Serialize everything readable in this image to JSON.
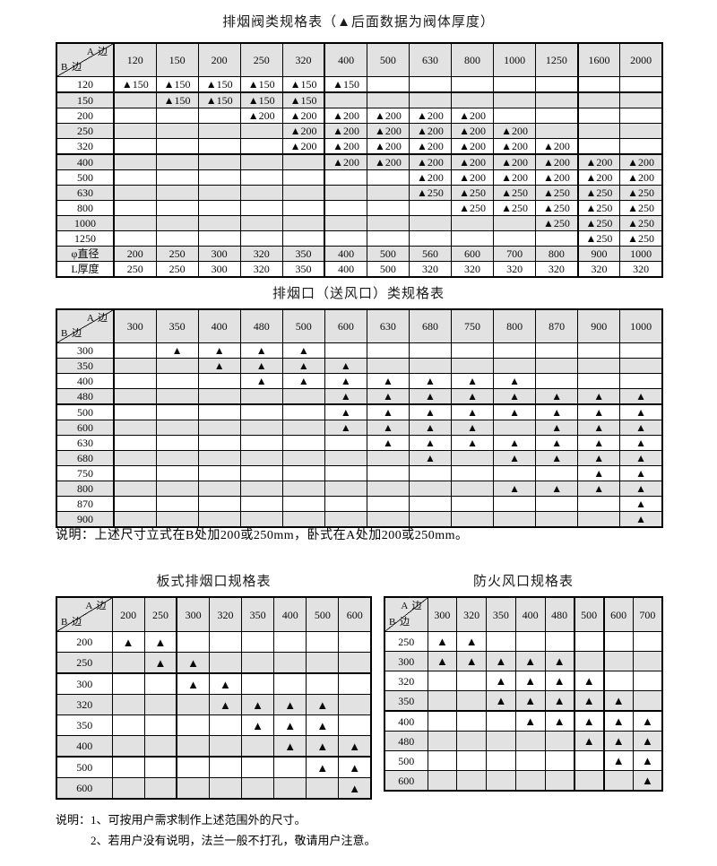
{
  "colors": {
    "header_fill": "#e2e2e2",
    "row_alt_fill": "#e2e2e2",
    "border": "#000000",
    "background": "#ffffff"
  },
  "tables": [
    {
      "title": "排烟阀类规格表（▲后面数据为阀体厚度）",
      "corner_top": "A 边",
      "corner_bottom": "B 边",
      "columns": [
        "120",
        "150",
        "200",
        "250",
        "320",
        "400",
        "500",
        "630",
        "800",
        "1000",
        "1250",
        "1600",
        "2000"
      ],
      "rows": [
        {
          "label": "120",
          "cells": [
            "▲150",
            "▲150",
            "▲150",
            "▲150",
            "▲150",
            "▲150",
            "",
            "",
            "",
            "",
            "",
            "",
            ""
          ]
        },
        {
          "label": "150",
          "cells": [
            "",
            "▲150",
            "▲150",
            "▲150",
            "▲150",
            "",
            "",
            "",
            "",
            "",
            "",
            "",
            ""
          ]
        },
        {
          "label": "200",
          "cells": [
            "",
            "",
            "",
            "▲200",
            "▲200",
            "▲200",
            "▲200",
            "▲200",
            "▲200",
            "",
            "",
            "",
            ""
          ]
        },
        {
          "label": "250",
          "cells": [
            "",
            "",
            "",
            "",
            "▲200",
            "▲200",
            "▲200",
            "▲200",
            "▲200",
            "▲200",
            "",
            "",
            ""
          ]
        },
        {
          "label": "320",
          "cells": [
            "",
            "",
            "",
            "",
            "▲200",
            "▲200",
            "▲200",
            "▲200",
            "▲200",
            "▲200",
            "▲200",
            "",
            ""
          ]
        },
        {
          "label": "400",
          "cells": [
            "",
            "",
            "",
            "",
            "",
            "▲200",
            "▲200",
            "▲200",
            "▲200",
            "▲200",
            "▲200",
            "▲200",
            "▲200"
          ]
        },
        {
          "label": "500",
          "cells": [
            "",
            "",
            "",
            "",
            "",
            "",
            "",
            "▲200",
            "▲200",
            "▲200",
            "▲200",
            "▲200",
            "▲200"
          ]
        },
        {
          "label": "630",
          "cells": [
            "",
            "",
            "",
            "",
            "",
            "",
            "",
            "▲250",
            "▲250",
            "▲250",
            "▲250",
            "▲250",
            "▲250"
          ]
        },
        {
          "label": "800",
          "cells": [
            "",
            "",
            "",
            "",
            "",
            "",
            "",
            "",
            "▲250",
            "▲250",
            "▲250",
            "▲250",
            "▲250"
          ]
        },
        {
          "label": "1000",
          "cells": [
            "",
            "",
            "",
            "",
            "",
            "",
            "",
            "",
            "",
            "",
            "▲250",
            "▲250",
            "▲250"
          ]
        },
        {
          "label": "1250",
          "cells": [
            "",
            "",
            "",
            "",
            "",
            "",
            "",
            "",
            "",
            "",
            "",
            "▲250",
            "▲250"
          ]
        },
        {
          "label": "φ直径",
          "cells": [
            "200",
            "250",
            "300",
            "320",
            "350",
            "400",
            "500",
            "560",
            "600",
            "700",
            "800",
            "900",
            "1000"
          ]
        },
        {
          "label": "L厚度",
          "cells": [
            "250",
            "250",
            "300",
            "320",
            "350",
            "400",
            "500",
            "320",
            "320",
            "320",
            "320",
            "320",
            "320"
          ]
        }
      ]
    },
    {
      "title": "排烟口（送风口）类规格表",
      "corner_top": "A 边",
      "corner_bottom": "B 边",
      "columns": [
        "300",
        "350",
        "400",
        "480",
        "500",
        "600",
        "630",
        "680",
        "750",
        "800",
        "870",
        "900",
        "1000"
      ],
      "rows": [
        {
          "label": "300",
          "cells": [
            "",
            "▲",
            "▲",
            "▲",
            "▲",
            "",
            "",
            "",
            "",
            "",
            "",
            "",
            ""
          ]
        },
        {
          "label": "350",
          "cells": [
            "",
            "",
            "▲",
            "▲",
            "▲",
            "▲",
            "",
            "",
            "",
            "",
            "",
            "",
            ""
          ]
        },
        {
          "label": "400",
          "cells": [
            "",
            "",
            "",
            "▲",
            "▲",
            "▲",
            "▲",
            "▲",
            "▲",
            "▲",
            "",
            "",
            ""
          ]
        },
        {
          "label": "480",
          "cells": [
            "",
            "",
            "",
            "",
            "",
            "▲",
            "▲",
            "▲",
            "▲",
            "▲",
            "▲",
            "▲",
            "▲"
          ]
        },
        {
          "label": "500",
          "cells": [
            "",
            "",
            "",
            "",
            "",
            "▲",
            "▲",
            "▲",
            "▲",
            "▲",
            "▲",
            "▲",
            "▲"
          ]
        },
        {
          "label": "600",
          "cells": [
            "",
            "",
            "",
            "",
            "",
            "▲",
            "▲",
            "▲",
            "▲",
            "",
            "▲",
            "▲",
            "▲"
          ]
        },
        {
          "label": "630",
          "cells": [
            "",
            "",
            "",
            "",
            "",
            "",
            "▲",
            "▲",
            "▲",
            "▲",
            "▲",
            "▲",
            "▲"
          ]
        },
        {
          "label": "680",
          "cells": [
            "",
            "",
            "",
            "",
            "",
            "",
            "",
            "▲",
            "",
            "▲",
            "▲",
            "▲",
            "▲"
          ]
        },
        {
          "label": "750",
          "cells": [
            "",
            "",
            "",
            "",
            "",
            "",
            "",
            "",
            "",
            "",
            "",
            "▲",
            "▲"
          ]
        },
        {
          "label": "800",
          "cells": [
            "",
            "",
            "",
            "",
            "",
            "",
            "",
            "",
            "",
            "▲",
            "▲",
            "▲",
            "▲"
          ]
        },
        {
          "label": "870",
          "cells": [
            "",
            "",
            "",
            "",
            "",
            "",
            "",
            "",
            "",
            "",
            "",
            "",
            "▲"
          ]
        },
        {
          "label": "900",
          "cells": [
            "",
            "",
            "",
            "",
            "",
            "",
            "",
            "",
            "",
            "",
            "",
            "",
            "▲"
          ]
        }
      ]
    },
    {
      "title": "板式排烟口规格表",
      "corner_top": "A 边",
      "corner_bottom": "B 边",
      "columns": [
        "200",
        "250",
        "300",
        "320",
        "350",
        "400",
        "500",
        "600"
      ],
      "rows": [
        {
          "label": "200",
          "cells": [
            "▲",
            "▲",
            "",
            "",
            "",
            "",
            "",
            ""
          ]
        },
        {
          "label": "250",
          "cells": [
            "",
            "▲",
            "▲",
            "",
            "",
            "",
            "",
            ""
          ]
        },
        {
          "label": "300",
          "cells": [
            "",
            "",
            "▲",
            "▲",
            "",
            "",
            "",
            ""
          ]
        },
        {
          "label": "320",
          "cells": [
            "",
            "",
            "",
            "▲",
            "▲",
            "▲",
            "▲",
            ""
          ]
        },
        {
          "label": "350",
          "cells": [
            "",
            "",
            "",
            "",
            "▲",
            "▲",
            "▲",
            ""
          ]
        },
        {
          "label": "400",
          "cells": [
            "",
            "",
            "",
            "",
            "",
            "▲",
            "▲",
            "▲"
          ]
        },
        {
          "label": "500",
          "cells": [
            "",
            "",
            "",
            "",
            "",
            "",
            "▲",
            "▲"
          ]
        },
        {
          "label": "600",
          "cells": [
            "",
            "",
            "",
            "",
            "",
            "",
            "",
            "▲"
          ]
        }
      ]
    },
    {
      "title": "防火风口规格表",
      "corner_top": "A 边",
      "corner_bottom": "B 边",
      "columns": [
        "300",
        "320",
        "350",
        "400",
        "480",
        "500",
        "600",
        "700"
      ],
      "rows": [
        {
          "label": "250",
          "cells": [
            "▲",
            "▲",
            "",
            "",
            "",
            "",
            "",
            ""
          ]
        },
        {
          "label": "300",
          "cells": [
            "▲",
            "▲",
            "▲",
            "▲",
            "▲",
            "",
            "",
            ""
          ]
        },
        {
          "label": "320",
          "cells": [
            "",
            "",
            "▲",
            "▲",
            "▲",
            "▲",
            "",
            ""
          ]
        },
        {
          "label": "350",
          "cells": [
            "",
            "",
            "▲",
            "▲",
            "▲",
            "▲",
            "▲",
            ""
          ]
        },
        {
          "label": "400",
          "cells": [
            "",
            "",
            "",
            "▲",
            "▲",
            "▲",
            "▲",
            "▲"
          ]
        },
        {
          "label": "480",
          "cells": [
            "",
            "",
            "",
            "",
            "",
            "▲",
            "▲",
            "▲"
          ]
        },
        {
          "label": "500",
          "cells": [
            "",
            "",
            "",
            "",
            "",
            "",
            "▲",
            "▲"
          ]
        },
        {
          "label": "600",
          "cells": [
            "",
            "",
            "",
            "",
            "",
            "",
            "",
            "▲"
          ]
        }
      ]
    }
  ],
  "note_mid": "说明：上述尺寸立式在B处加200或250mm，卧式在A处加200或250mm。",
  "notes_bottom": {
    "line1": "说明：1、可按用户需求制作上述范围外的尺寸。",
    "line2": "2、若用户没有说明，法兰一般不打孔，敬请用户注意。"
  }
}
